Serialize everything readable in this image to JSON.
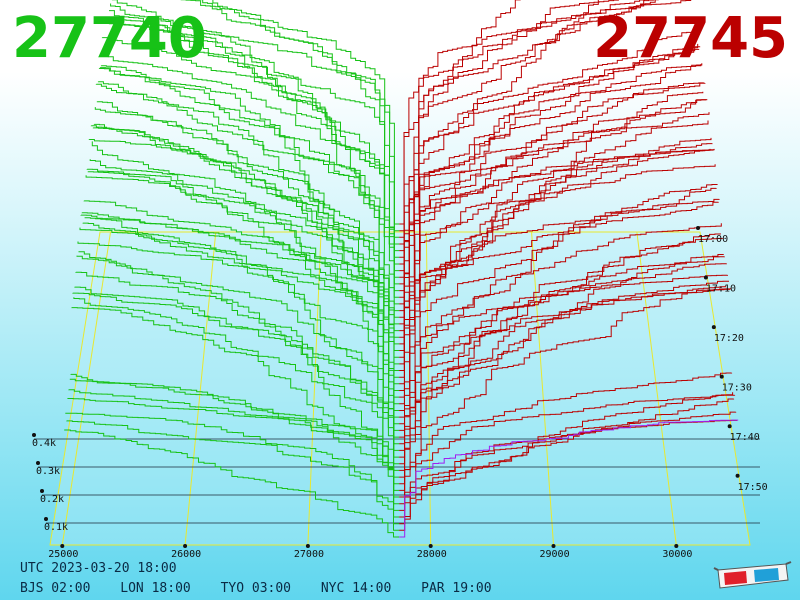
{
  "bid_price": "27740",
  "ask_price": "27745",
  "timestamp_utc": "UTC 2023-03-20 18:00",
  "timezones": [
    {
      "label": "BJS 02:00"
    },
    {
      "label": "LON 18:00"
    },
    {
      "label": "TYO 03:00"
    },
    {
      "label": "NYC 14:00"
    },
    {
      "label": "PAR 19:00"
    }
  ],
  "colors": {
    "bid": "#17c217",
    "ask": "#bb0000",
    "grid": "#e8e830",
    "latest_ask": "#a020f0"
  },
  "icon": "3d-glasses-icon",
  "chart_data": {
    "type": "area",
    "x": {
      "tick_labels": [
        "25000",
        "26000",
        "27000",
        "28000",
        "29000",
        "30000"
      ],
      "range": [
        24900,
        30600
      ]
    },
    "volume_axis": {
      "tick_labels": [
        "0.1k",
        "0.2k",
        "0.3k",
        "0.4k"
      ]
    },
    "time_axis": {
      "tick_labels": [
        "17:00",
        "17:10",
        "17:20",
        "17:30",
        "17:40",
        "17:50"
      ]
    },
    "mid_price": 27742.5,
    "series": [
      {
        "values": [
          27740,
          27745
        ]
      }
    ]
  }
}
